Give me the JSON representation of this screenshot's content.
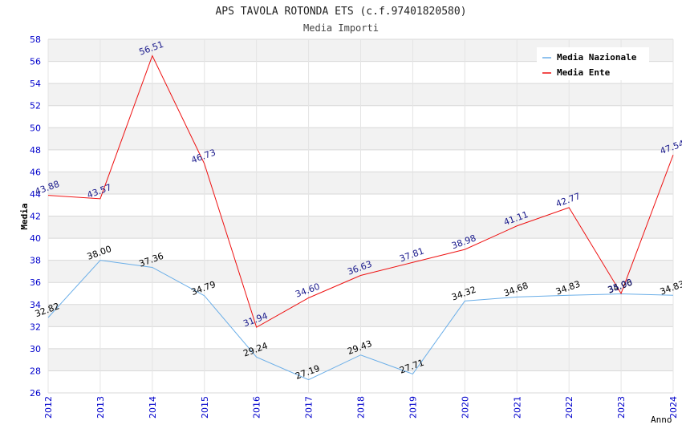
{
  "chart_data": {
    "type": "line",
    "title": "APS TAVOLA ROTONDA ETS (c.f.97401820580)",
    "subtitle": "Media Importi",
    "xlabel": "Anno",
    "ylabel": "Media",
    "ylim": [
      26,
      58
    ],
    "ytick_step": 2,
    "grid": true,
    "legend_position": "top-right",
    "categories": [
      "2012",
      "2013",
      "2014",
      "2015",
      "2016",
      "2017",
      "2018",
      "2019",
      "2020",
      "2021",
      "2022",
      "2023",
      "2024"
    ],
    "series": [
      {
        "name": "Media Nazionale",
        "color": "#6aaee8",
        "label_color": "#000000",
        "values": [
          32.82,
          38.0,
          37.36,
          34.79,
          29.24,
          27.19,
          29.43,
          27.71,
          34.32,
          34.68,
          34.83,
          34.96,
          34.83
        ],
        "labels": [
          "32.82",
          "38.00",
          "37.36",
          "34.79",
          "29.24",
          "27.19",
          "29.43",
          "27.71",
          "34.32",
          "34.68",
          "34.83",
          "34.96",
          "34.83"
        ]
      },
      {
        "name": "Media Ente",
        "color": "#ee1111",
        "label_color": "#1a1a8c",
        "values": [
          43.88,
          43.57,
          56.51,
          46.73,
          31.94,
          34.6,
          36.63,
          37.81,
          38.98,
          41.11,
          42.77,
          35.0,
          47.54
        ],
        "labels": [
          "43.88",
          "43.57",
          "56.51",
          "46.73",
          "31.94",
          "34.60",
          "36.63",
          "37.81",
          "38.98",
          "41.11",
          "42.77",
          "35.00",
          "47.54"
        ]
      }
    ]
  },
  "colors": {
    "tick_label": "#0000cc",
    "band": "#f2f2f2",
    "grid": "#d8d8d8"
  }
}
